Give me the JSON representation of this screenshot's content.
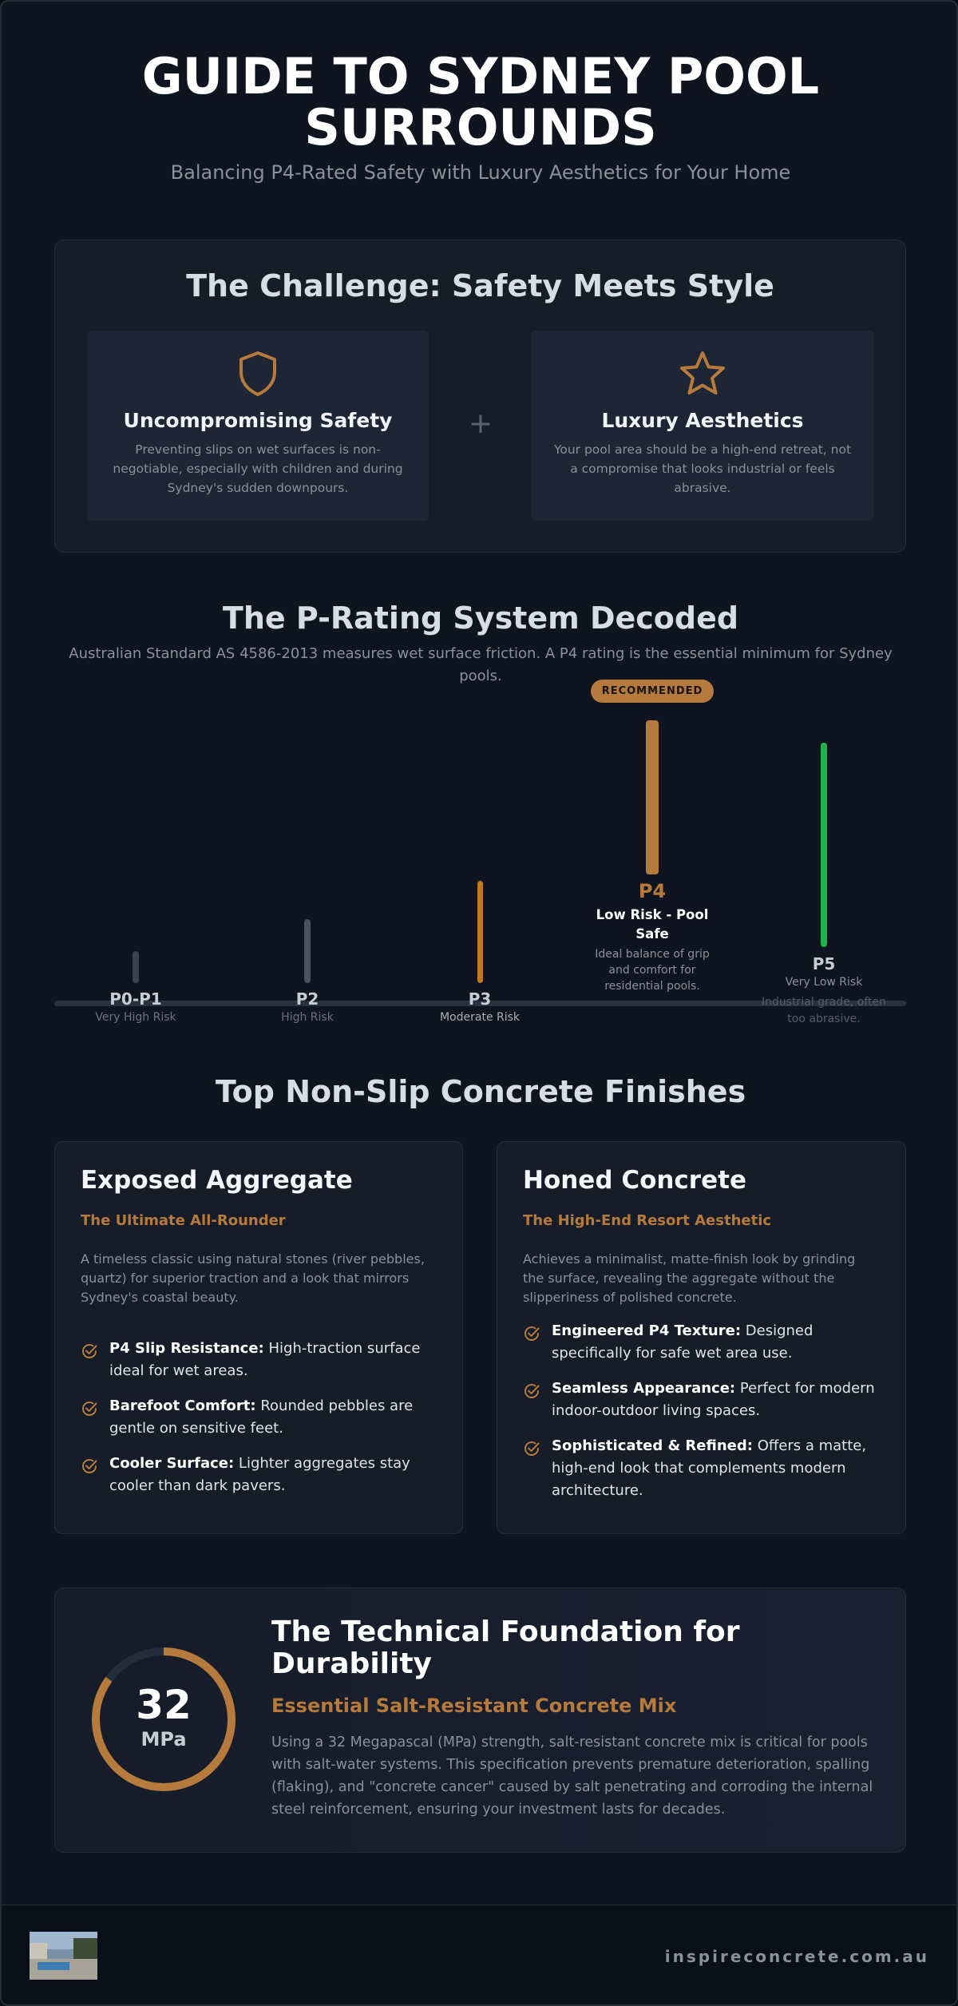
{
  "header": {
    "title": "GUIDE TO SYDNEY POOL SURROUNDS",
    "subtitle": "Balancing P4-Rated Safety with Luxury Aesthetics for Your Home"
  },
  "challenge": {
    "title": "The Challenge: Safety Meets Style",
    "connector": "+",
    "cards": [
      {
        "title": "Uncompromising Safety",
        "text": "Preventing slips on wet surfaces is non-negotiable, especially with children and during Sydney's sudden downpours."
      },
      {
        "title": "Luxury Aesthetics",
        "text": "Your pool area should be a high-end retreat, not a compromise that looks industrial or feels abrasive."
      }
    ]
  },
  "p_rating": {
    "title": "The P-Rating System Decoded",
    "description": "Australian Standard AS 4586-2013 measures wet surface friction. A P4 rating is the essential minimum for Sydney pools.",
    "badge": "RECOMMENDED",
    "levels": [
      {
        "label": "P0-P1",
        "risk": "Very High Risk"
      },
      {
        "label": "P2",
        "risk": "High Risk"
      },
      {
        "label": "P3",
        "risk": "Moderate Risk"
      },
      {
        "label": "P4",
        "risk": "Low Risk - Pool Safe",
        "note": "Ideal balance of grip and comfort for residential pools."
      },
      {
        "label": "P5",
        "risk": "Very Low Risk",
        "note": "Industrial grade, often too abrasive."
      }
    ]
  },
  "finishes": {
    "title": "Top Non-Slip Concrete Finishes",
    "cards": [
      {
        "title": "Exposed Aggregate",
        "subtitle": "The Ultimate All-Rounder",
        "description": "A timeless classic using natural stones (river pebbles, quartz) for superior traction and a look that mirrors Sydney's coastal beauty.",
        "features": [
          {
            "label": "P4 Slip Resistance:",
            "text": "High-traction surface ideal for wet areas."
          },
          {
            "label": "Barefoot Comfort:",
            "text": "Rounded pebbles are gentle on sensitive feet."
          },
          {
            "label": "Cooler Surface:",
            "text": "Lighter aggregates stay cooler than dark pavers."
          }
        ]
      },
      {
        "title": "Honed Concrete",
        "subtitle": "The High-End Resort Aesthetic",
        "description": "Achieves a minimalist, matte-finish look by grinding the surface, revealing the aggregate without the slipperiness of polished concrete.",
        "features": [
          {
            "label": "Engineered P4 Texture:",
            "text": "Designed specifically for safe wet area use."
          },
          {
            "label": "Seamless Appearance:",
            "text": "Perfect for modern indoor-outdoor living spaces."
          },
          {
            "label": "Sophisticated & Refined:",
            "text": "Offers a matte, high-end look that complements modern architecture."
          }
        ]
      }
    ]
  },
  "technical": {
    "value": 32,
    "unit": "MPa",
    "title": "The Technical Foundation for Durability",
    "subtitle": "Essential Salt-Resistant Concrete Mix",
    "text": "Using a 32 Megapascal (MPa) strength, salt-resistant concrete mix is critical for pools with salt-water systems. This specification prevents premature deterioration, spalling (flaking), and \"concrete cancer\" caused by salt penetrating and corroding the internal steel reinforcement, ensuring your investment lasts for decades."
  },
  "footer": {
    "site": "inspireconcrete.com.au"
  }
}
